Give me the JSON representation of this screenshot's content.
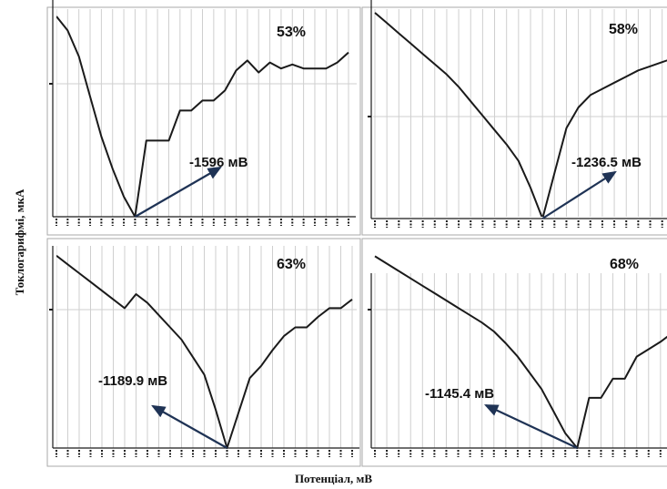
{
  "figure": {
    "ylabel": "Токлогарифмі, мкА",
    "xlabel": "Потенціал, мВ"
  },
  "colors": {
    "curve": "#1a1a1a",
    "arrow": "#1f3355",
    "grid": "#cfcfcf",
    "axis": "#1a1a1a"
  },
  "chart_data": [
    {
      "type": "line",
      "percent": "53%",
      "annotation": "-1596 мВ",
      "x_points": 27,
      "min_index": 7,
      "y_norm": [
        1.0,
        0.93,
        0.8,
        0.6,
        0.4,
        0.24,
        0.1,
        0.0,
        0.38,
        0.38,
        0.38,
        0.53,
        0.53,
        0.58,
        0.58,
        0.63,
        0.73,
        0.78,
        0.72,
        0.77,
        0.74,
        0.76,
        0.74,
        0.74,
        0.74,
        0.77,
        0.82
      ]
    },
    {
      "type": "line",
      "percent": "58%",
      "annotation": "-1236.5 мВ",
      "x_points": 27,
      "min_index": 14,
      "y_norm": [
        1.0,
        0.95,
        0.9,
        0.85,
        0.8,
        0.75,
        0.7,
        0.64,
        0.57,
        0.5,
        0.43,
        0.36,
        0.28,
        0.15,
        0.0,
        0.22,
        0.44,
        0.54,
        0.6,
        0.63,
        0.66,
        0.69,
        0.72,
        0.74,
        0.76,
        0.78,
        0.8
      ]
    },
    {
      "type": "line",
      "percent": "63%",
      "annotation": "-1189.9 мВ",
      "x_points": 27,
      "min_index": 15,
      "y_norm": [
        1.1,
        1.05,
        1.0,
        0.95,
        0.9,
        0.85,
        0.8,
        0.88,
        0.83,
        0.76,
        0.69,
        0.62,
        0.52,
        0.42,
        0.22,
        0.0,
        0.2,
        0.4,
        0.47,
        0.56,
        0.64,
        0.69,
        0.69,
        0.75,
        0.8,
        0.8,
        0.85
      ]
    },
    {
      "type": "line",
      "percent": "68%",
      "annotation": "-1145.4 мВ",
      "x_points": 27,
      "min_index": 17,
      "y_norm": [
        1.3,
        1.25,
        1.2,
        1.15,
        1.1,
        1.05,
        1.0,
        0.95,
        0.9,
        0.85,
        0.79,
        0.71,
        0.62,
        0.51,
        0.4,
        0.25,
        0.1,
        0.0,
        0.34,
        0.34,
        0.47,
        0.47,
        0.62,
        0.67,
        0.72,
        0.78,
        0.86
      ]
    }
  ]
}
